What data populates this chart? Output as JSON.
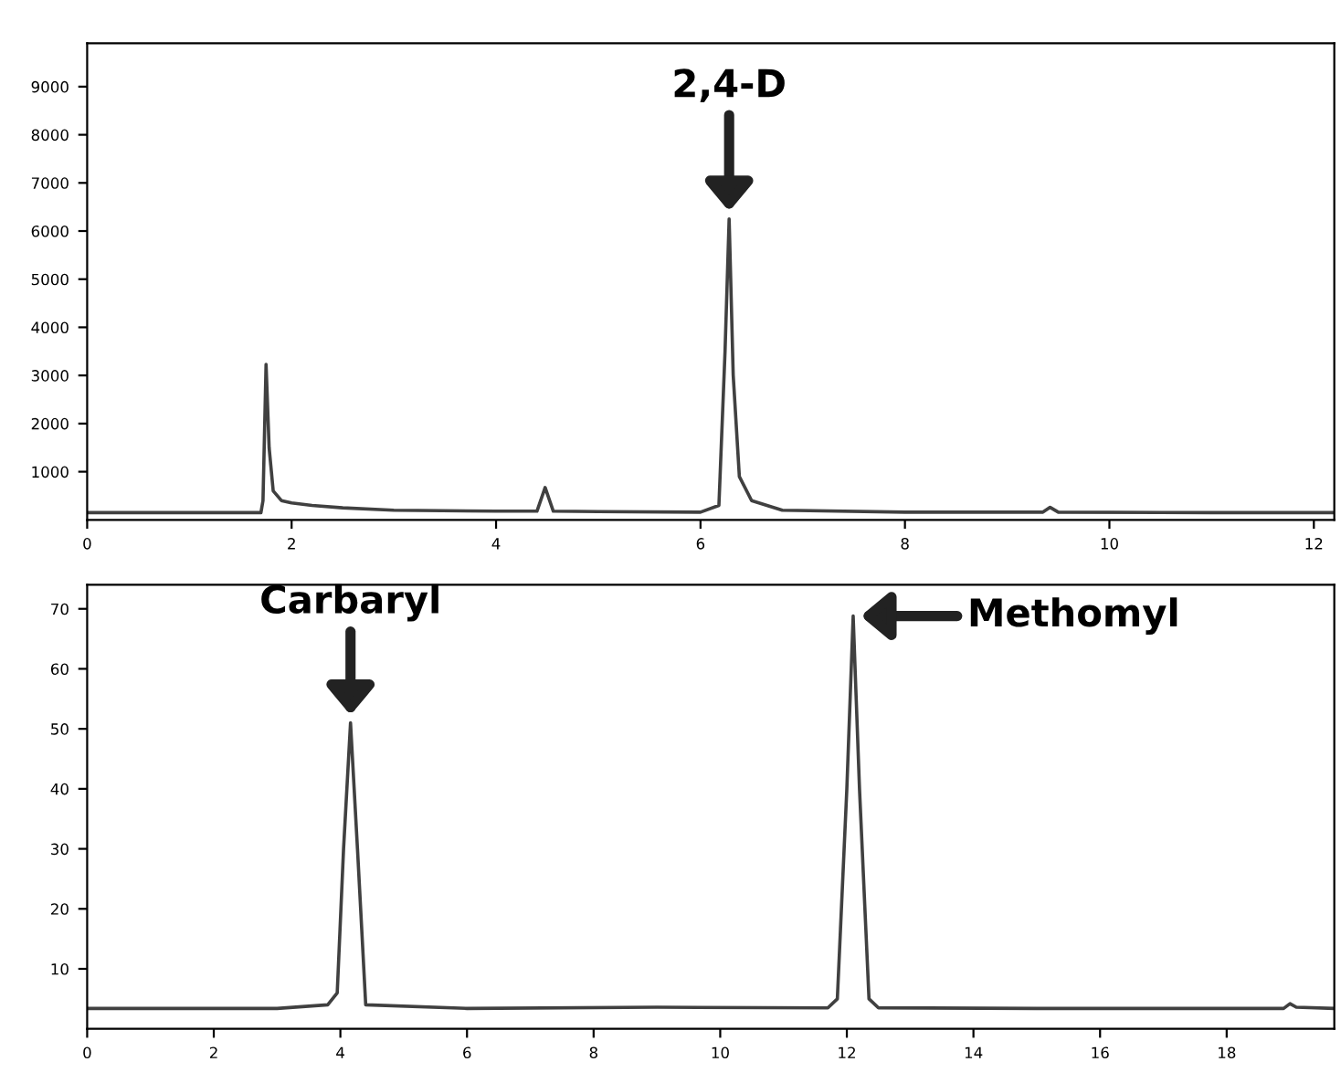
{
  "chart_data": [
    {
      "type": "line",
      "xlim": [
        0,
        12.2
      ],
      "ylim": [
        0,
        9900
      ],
      "xticks": [
        0,
        2,
        4,
        6,
        8,
        10,
        12
      ],
      "yticks": [
        1000,
        2000,
        3000,
        4000,
        5000,
        6000,
        7000,
        8000,
        9000
      ],
      "grid": false,
      "legend": false,
      "marker": "none",
      "line_style": "solid",
      "series": [
        {
          "color": "#404040",
          "x": [
            0,
            1.7,
            1.72,
            1.75,
            1.78,
            1.82,
            1.9,
            2.0,
            2.2,
            2.5,
            3,
            4,
            4.4,
            4.48,
            4.56,
            5,
            6,
            6.18,
            6.24,
            6.28,
            6.32,
            6.38,
            6.5,
            6.8,
            8,
            9.35,
            9.42,
            9.5,
            11,
            12.2
          ],
          "values": [
            150,
            150,
            400,
            3230,
            1500,
            600,
            400,
            350,
            300,
            250,
            200,
            180,
            180,
            670,
            180,
            170,
            160,
            300,
            3500,
            6250,
            3000,
            900,
            400,
            200,
            160,
            160,
            260,
            160,
            150,
            150
          ]
        }
      ],
      "annotations": [
        {
          "text": "2,4-D",
          "x": 6.28,
          "y": 6250
        }
      ]
    },
    {
      "type": "line",
      "xlim": [
        0,
        19.7
      ],
      "ylim": [
        0,
        74
      ],
      "xticks": [
        0,
        2,
        4,
        6,
        8,
        10,
        12,
        14,
        16,
        18
      ],
      "yticks": [
        10,
        20,
        30,
        40,
        50,
        60,
        70
      ],
      "grid": false,
      "legend": false,
      "marker": "none",
      "line_style": "solid",
      "series": [
        {
          "color": "#404040",
          "x": [
            0,
            3,
            3.8,
            3.95,
            4.05,
            4.16,
            4.27,
            4.4,
            6,
            9,
            11.7,
            11.85,
            12.0,
            12.1,
            12.2,
            12.35,
            12.5,
            15,
            18.9,
            19.0,
            19.1,
            19.7
          ],
          "values": [
            3.4,
            3.4,
            4,
            6,
            30,
            51,
            30,
            4,
            3.4,
            3.6,
            3.5,
            5,
            40,
            68.8,
            40,
            5,
            3.5,
            3.4,
            3.4,
            4.2,
            3.6,
            3.4
          ]
        }
      ],
      "annotations": [
        {
          "text": "Carbaryl",
          "x": 4.16,
          "y": 51
        },
        {
          "text": "Methomyl",
          "x": 12.1,
          "y": 68.8
        }
      ]
    }
  ]
}
